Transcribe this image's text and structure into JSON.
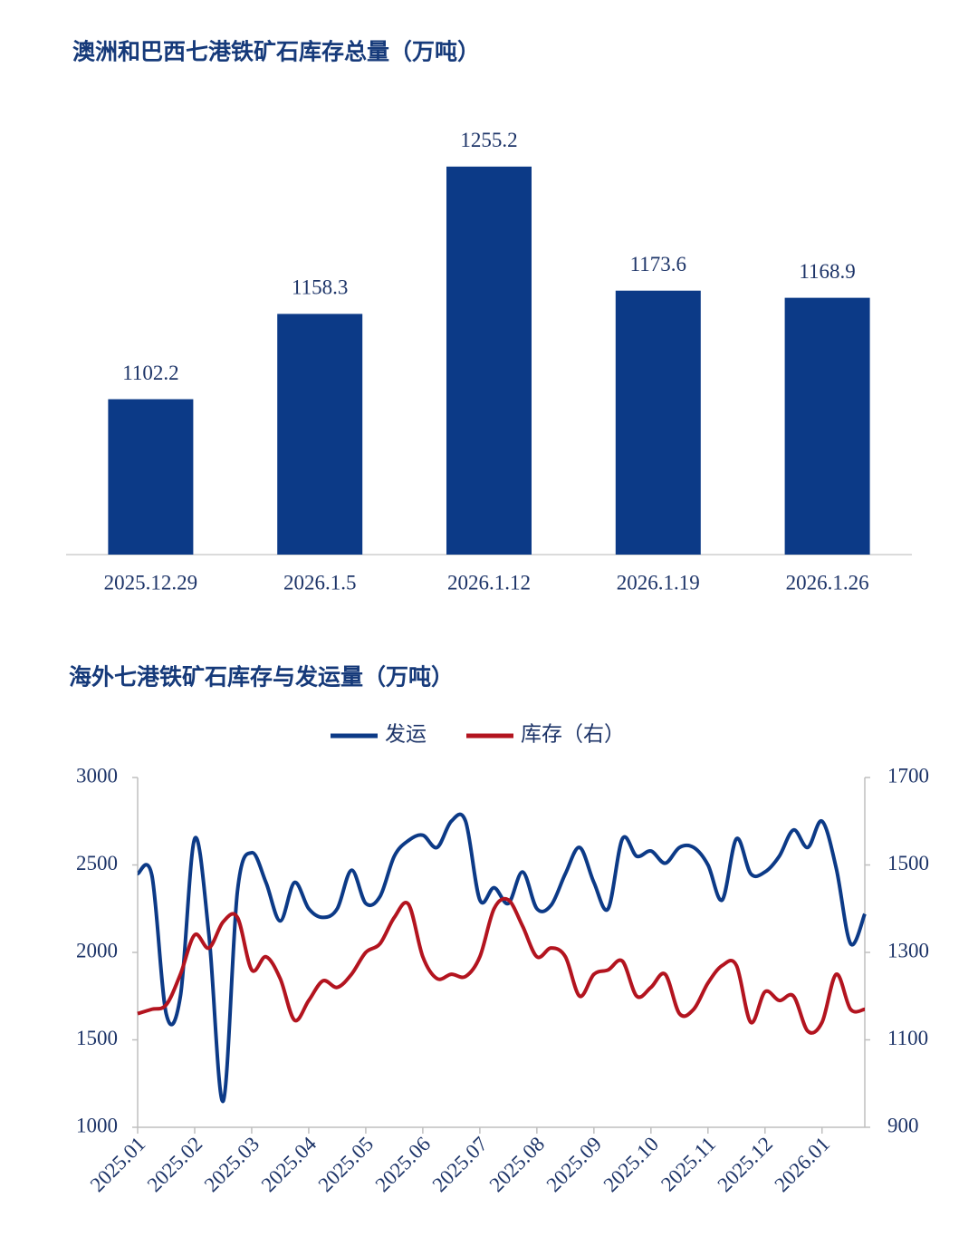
{
  "chart_data": [
    {
      "type": "bar",
      "title": "澳洲和巴西七港铁矿石库存总量（万吨）",
      "categories": [
        "2025.12.29",
        "2026.1.5",
        "2026.1.12",
        "2026.1.19",
        "2026.1.26"
      ],
      "values": [
        1102.2,
        1158.3,
        1255.2,
        1173.6,
        1168.9
      ],
      "color": "#0c3a87",
      "ylim": [
        1000,
        1270
      ]
    },
    {
      "type": "line",
      "title": "海外七港铁矿石库存与发运量（万吨）",
      "x": [
        0,
        0.25,
        0.5,
        0.75,
        1,
        1.25,
        1.5,
        1.75,
        2,
        2.25,
        2.5,
        2.75,
        3,
        3.25,
        3.5,
        3.75,
        4,
        4.25,
        4.5,
        4.75,
        5,
        5.25,
        5.5,
        5.75,
        6,
        6.25,
        6.5,
        6.75,
        7,
        7.25,
        7.5,
        7.75,
        8,
        8.25,
        8.5,
        8.75,
        9,
        9.25,
        9.5,
        9.75,
        10,
        10.25,
        10.5,
        10.75,
        11,
        11.25,
        11.5,
        11.75,
        12,
        12.25,
        12.5,
        12.75
      ],
      "xlim": [
        0,
        12.75
      ],
      "xticks": [
        {
          "value": 0,
          "label": "2025.01"
        },
        {
          "value": 1,
          "label": "2025.02"
        },
        {
          "value": 2,
          "label": "2025.03"
        },
        {
          "value": 3,
          "label": "2025.04"
        },
        {
          "value": 4,
          "label": "2025.05"
        },
        {
          "value": 5,
          "label": "2025.06"
        },
        {
          "value": 6,
          "label": "2025.07"
        },
        {
          "value": 7,
          "label": "2025.08"
        },
        {
          "value": 8,
          "label": "2025.09"
        },
        {
          "value": 9,
          "label": "2025.10"
        },
        {
          "value": 10,
          "label": "2025.11"
        },
        {
          "value": 11,
          "label": "2025.12"
        },
        {
          "value": 12,
          "label": "2026.01"
        }
      ],
      "ylim": [
        1000,
        3000
      ],
      "yticks": [
        1000,
        1500,
        2000,
        2500,
        3000
      ],
      "y2lim": [
        900,
        1700
      ],
      "y2ticks": [
        900,
        1100,
        1300,
        1500,
        1700
      ],
      "series": [
        {
          "name": "发运",
          "color": "#0c3a87",
          "values": [
            2450,
            2440,
            1650,
            1750,
            2650,
            2100,
            1150,
            2350,
            2570,
            2400,
            2180,
            2400,
            2250,
            2200,
            2250,
            2470,
            2280,
            2320,
            2550,
            2640,
            2670,
            2600,
            2750,
            2750,
            2300,
            2370,
            2280,
            2460,
            2250,
            2270,
            2450,
            2600,
            2400,
            2250,
            2650,
            2550,
            2580,
            2510,
            2600,
            2600,
            2500,
            2300,
            2650,
            2450,
            2460,
            2550,
            2700,
            2600,
            2750,
            2480,
            2050,
            2220
          ]
        },
        {
          "name": "库存（右）",
          "color": "#b3141f",
          "axis": "y2",
          "values": [
            1160,
            1170,
            1180,
            1250,
            1340,
            1310,
            1370,
            1380,
            1260,
            1290,
            1240,
            1145,
            1190,
            1235,
            1220,
            1250,
            1300,
            1320,
            1380,
            1410,
            1290,
            1240,
            1250,
            1245,
            1290,
            1400,
            1420,
            1360,
            1290,
            1310,
            1290,
            1200,
            1250,
            1260,
            1280,
            1200,
            1220,
            1250,
            1160,
            1170,
            1230,
            1270,
            1270,
            1140,
            1210,
            1190,
            1200,
            1120,
            1140,
            1250,
            1170,
            1170
          ]
        }
      ]
    }
  ]
}
